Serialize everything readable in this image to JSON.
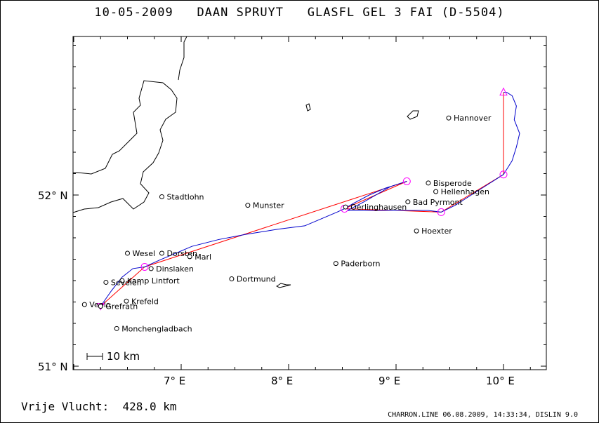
{
  "title": "10-05-2009   DAAN SPRUYT   GLASFL GEL 3 FAI (D-5504)",
  "footer": {
    "distance": "Vrije Vlucht:  428.0 km",
    "credits": "CHARRON.LINE 06.08.2009, 14:33:34, DISLIN 9.0"
  },
  "axes": {
    "lat_labels": [
      "52° N",
      "51° N"
    ],
    "lon_labels": [
      "7° E",
      "8° E",
      "9° E",
      "10° E"
    ]
  },
  "scale_bar": "10 km",
  "colors": {
    "track": "#0000cc",
    "task": "#ff0000",
    "turnpoint": "#ff00ff",
    "map": "#000000"
  },
  "places": [
    {
      "name": "Hannover",
      "lon": 9.49,
      "lat": 52.45
    },
    {
      "name": "Bisperode",
      "lon": 9.3,
      "lat": 52.07
    },
    {
      "name": "Hellenhagen",
      "lon": 9.37,
      "lat": 52.02
    },
    {
      "name": "Bad Pyrmont",
      "lon": 9.11,
      "lat": 51.96
    },
    {
      "name": "Oerlinghausen",
      "lon": 8.53,
      "lat": 51.93
    },
    {
      "name": "Hoexter",
      "lon": 9.19,
      "lat": 51.79
    },
    {
      "name": "Paderborn",
      "lon": 8.44,
      "lat": 51.6
    },
    {
      "name": "Munster",
      "lon": 7.62,
      "lat": 51.94
    },
    {
      "name": "Dortmund",
      "lon": 7.47,
      "lat": 51.51
    },
    {
      "name": "Stadtlohn",
      "lon": 6.82,
      "lat": 51.99
    },
    {
      "name": "Wesel",
      "lon": 6.5,
      "lat": 51.66
    },
    {
      "name": "Dorsten",
      "lon": 6.82,
      "lat": 51.66
    },
    {
      "name": "Marl",
      "lon": 7.08,
      "lat": 51.64
    },
    {
      "name": "Dinslaken",
      "lon": 6.72,
      "lat": 51.57
    },
    {
      "name": "Kamp Lintfort",
      "lon": 6.45,
      "lat": 51.5
    },
    {
      "name": "Sevelen",
      "lon": 6.3,
      "lat": 51.49
    },
    {
      "name": "Krefeld",
      "lon": 6.49,
      "lat": 51.38
    },
    {
      "name": "Venlo",
      "lon": 6.1,
      "lat": 51.36
    },
    {
      "name": "Grefrath",
      "lon": 6.25,
      "lat": 51.35
    },
    {
      "name": "Monchengladbach",
      "lon": 6.4,
      "lat": 51.22
    }
  ],
  "turnpoints": [
    {
      "lon": 6.25,
      "lat": 51.35,
      "shape": "start"
    },
    {
      "lon": 6.66,
      "lat": 51.58,
      "shape": "circle"
    },
    {
      "lon": 9.1,
      "lat": 52.08,
      "shape": "circle"
    },
    {
      "lon": 8.52,
      "lat": 51.92,
      "shape": "circle"
    },
    {
      "lon": 9.42,
      "lat": 51.9,
      "shape": "circle"
    },
    {
      "lon": 10.0,
      "lat": 52.12,
      "shape": "circle"
    },
    {
      "lon": 10.0,
      "lat": 52.6,
      "shape": "triangle"
    }
  ],
  "task": [
    [
      6.25,
      51.35
    ],
    [
      6.66,
      51.58
    ],
    [
      9.1,
      52.08
    ],
    [
      8.52,
      51.92
    ],
    [
      9.42,
      51.9
    ],
    [
      10.0,
      52.12
    ],
    [
      10.0,
      52.6
    ]
  ],
  "track": [
    [
      6.25,
      51.35
    ],
    [
      6.35,
      51.44
    ],
    [
      6.45,
      51.52
    ],
    [
      6.55,
      51.57
    ],
    [
      6.66,
      51.58
    ],
    [
      6.8,
      51.62
    ],
    [
      6.95,
      51.66
    ],
    [
      7.1,
      51.7
    ],
    [
      7.35,
      51.74
    ],
    [
      7.6,
      51.77
    ],
    [
      7.9,
      51.8
    ],
    [
      8.15,
      51.82
    ],
    [
      8.3,
      51.86
    ],
    [
      8.45,
      51.9
    ],
    [
      8.52,
      51.92
    ],
    [
      8.6,
      51.95
    ],
    [
      8.75,
      52.0
    ],
    [
      8.9,
      52.04
    ],
    [
      9.05,
      52.07
    ],
    [
      9.1,
      52.08
    ],
    [
      8.95,
      52.05
    ],
    [
      8.7,
      51.96
    ],
    [
      8.55,
      51.91
    ],
    [
      8.72,
      51.91
    ],
    [
      8.9,
      51.91
    ],
    [
      9.1,
      51.91
    ],
    [
      9.3,
      51.91
    ],
    [
      9.42,
      51.9
    ],
    [
      9.55,
      51.94
    ],
    [
      9.7,
      52.0
    ],
    [
      9.85,
      52.06
    ],
    [
      10.0,
      52.12
    ],
    [
      10.08,
      52.2
    ],
    [
      10.12,
      52.28
    ],
    [
      10.15,
      52.36
    ],
    [
      10.1,
      52.44
    ],
    [
      10.12,
      52.52
    ],
    [
      10.08,
      52.58
    ],
    [
      10.03,
      52.6
    ],
    [
      10.0,
      52.6
    ]
  ]
}
